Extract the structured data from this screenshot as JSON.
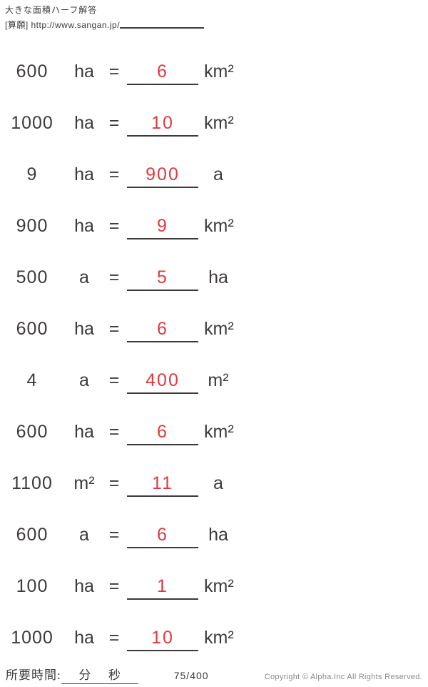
{
  "header": {
    "title": "大きな面積ハーフ解答",
    "source_label": "[算願] http://www.sangan.jp/"
  },
  "problems": [
    {
      "value": "600",
      "unit_from": "ha",
      "eq": "=",
      "answer": "6",
      "unit_to": "km²"
    },
    {
      "value": "1000",
      "unit_from": "ha",
      "eq": "=",
      "answer": "10",
      "unit_to": "km²"
    },
    {
      "value": "9",
      "unit_from": "ha",
      "eq": "=",
      "answer": "900",
      "unit_to": "a"
    },
    {
      "value": "900",
      "unit_from": "ha",
      "eq": "=",
      "answer": "9",
      "unit_to": "km²"
    },
    {
      "value": "500",
      "unit_from": "a",
      "eq": "=",
      "answer": "5",
      "unit_to": "ha"
    },
    {
      "value": "600",
      "unit_from": "ha",
      "eq": "=",
      "answer": "6",
      "unit_to": "km²"
    },
    {
      "value": "4",
      "unit_from": "a",
      "eq": "=",
      "answer": "400",
      "unit_to": "m²"
    },
    {
      "value": "600",
      "unit_from": "ha",
      "eq": "=",
      "answer": "6",
      "unit_to": "km²"
    },
    {
      "value": "1100",
      "unit_from": "m²",
      "eq": "=",
      "answer": "11",
      "unit_to": "a"
    },
    {
      "value": "600",
      "unit_from": "a",
      "eq": "=",
      "answer": "6",
      "unit_to": "ha"
    },
    {
      "value": "100",
      "unit_from": "ha",
      "eq": "=",
      "answer": "1",
      "unit_to": "km²"
    },
    {
      "value": "1000",
      "unit_from": "ha",
      "eq": "=",
      "answer": "10",
      "unit_to": "km²"
    }
  ],
  "footer": {
    "time_label": "所要時間:",
    "minutes_label": "分",
    "seconds_label": "秒",
    "page": "75/400",
    "copyright": "Copyright © Alpha.Inc All Rights Reserved."
  },
  "colors": {
    "ink": "#3e3a39",
    "answer_red": "#e0393e",
    "copyright_gray": "#898989"
  }
}
